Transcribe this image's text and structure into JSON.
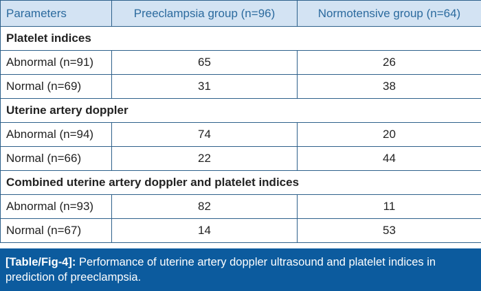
{
  "table": {
    "headers": [
      "Parameters",
      "Preeclampsia group (n=96)",
      "Normotensive group (n=64)"
    ],
    "sections": [
      {
        "title": "Platelet indices",
        "rows": [
          {
            "label": "Abnormal (n=91)",
            "preeclampsia": "65",
            "normotensive": "26"
          },
          {
            "label": "Normal (n=69)",
            "preeclampsia": "31",
            "normotensive": "38"
          }
        ]
      },
      {
        "title": "Uterine artery doppler",
        "rows": [
          {
            "label": "Abnormal (n=94)",
            "preeclampsia": "74",
            "normotensive": "20"
          },
          {
            "label": "Normal (n=66)",
            "preeclampsia": "22",
            "normotensive": "44"
          }
        ]
      },
      {
        "title": "Combined uterine artery doppler and platelet indices",
        "rows": [
          {
            "label": "Abnormal (n=93)",
            "preeclampsia": "82",
            "normotensive": "11"
          },
          {
            "label": "Normal (n=67)",
            "preeclampsia": "14",
            "normotensive": "53"
          }
        ]
      }
    ]
  },
  "caption": {
    "label": "[Table/Fig-4]:",
    "text": " Performance of uterine artery doppler ultrasound and platelet indices in prediction of preeclampsia."
  },
  "colors": {
    "header_bg": "#d3e3f3",
    "header_text": "#2b6a9e",
    "border": "#2c5f8a",
    "caption_bg": "#0c5b9e"
  }
}
